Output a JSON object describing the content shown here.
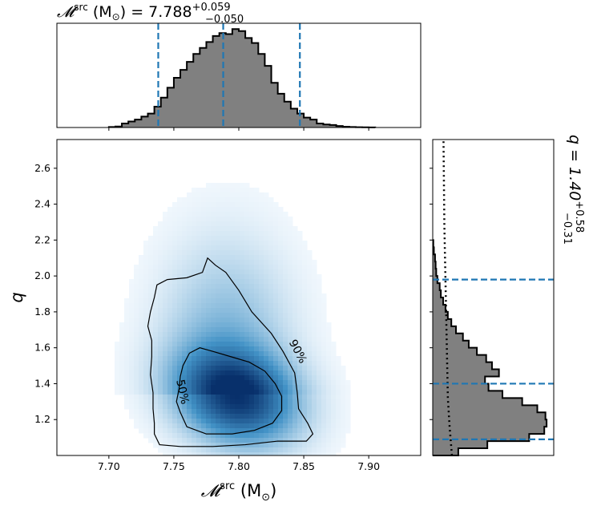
{
  "chart_data": {
    "type": "corner",
    "top_title": {
      "symbol": "𝓜",
      "sup": "src",
      "unit": " (M",
      "unit_sub": "⊙",
      "unit_close": ")",
      "eq": " = 7.788",
      "plus": "+0.059",
      "minus": "−0.050"
    },
    "right_title": {
      "text": "q = 1.40",
      "plus": "+0.58",
      "minus": "−0.31"
    },
    "xlabel": {
      "symbol": "𝓜",
      "sup": "src",
      "unit": " (M",
      "unit_sub": "⊙",
      "unit_close": ")"
    },
    "ylabel": "q",
    "xlim": [
      7.66,
      7.94
    ],
    "ylim": [
      1.0,
      2.76
    ],
    "xticks": [
      7.7,
      7.75,
      7.8,
      7.85,
      7.9
    ],
    "xtick_labels": [
      "7.70",
      "7.75",
      "7.80",
      "7.85",
      "7.90"
    ],
    "yticks": [
      1.2,
      1.4,
      1.6,
      1.8,
      2.0,
      2.2,
      2.4,
      2.6
    ],
    "ytick_labels": [
      "1.2",
      "1.4",
      "1.6",
      "1.8",
      "2.0",
      "2.2",
      "2.4",
      "2.6"
    ],
    "mc_hist": {
      "bins_start": 7.7,
      "bin_width": 0.005,
      "heights": [
        0.005,
        0.01,
        0.04,
        0.06,
        0.08,
        0.11,
        0.14,
        0.21,
        0.3,
        0.4,
        0.5,
        0.58,
        0.66,
        0.74,
        0.8,
        0.86,
        0.92,
        0.95,
        0.94,
        0.99,
        0.97,
        0.9,
        0.85,
        0.74,
        0.62,
        0.45,
        0.34,
        0.26,
        0.19,
        0.14,
        0.1,
        0.08,
        0.04,
        0.03,
        0.025,
        0.015,
        0.008,
        0.005,
        0.003,
        0.002,
        0.001
      ],
      "quantiles": [
        7.738,
        7.788,
        7.847
      ]
    },
    "q_hist": {
      "bins_start": 1.0,
      "bin_width": 0.04,
      "widths": [
        0.22,
        0.47,
        0.83,
        0.96,
        0.98,
        0.97,
        0.9,
        0.77,
        0.6,
        0.48,
        0.45,
        0.57,
        0.51,
        0.46,
        0.38,
        0.31,
        0.26,
        0.2,
        0.16,
        0.13,
        0.11,
        0.09,
        0.07,
        0.06,
        0.04,
        0.03,
        0.025,
        0.02,
        0.01,
        0.005
      ],
      "prior_x": [
        0.22,
        0.18,
        0.15,
        0.14,
        0.13,
        0.12,
        0.11,
        0.1,
        0.09,
        0.085,
        0.08,
        0.075
      ],
      "quantiles": [
        1.09,
        1.4,
        1.98
      ]
    },
    "density_center": [
      7.798,
      1.33
    ],
    "contours": [
      {
        "label": "50%",
        "level": 0.5
      },
      {
        "label": "90%",
        "level": 0.9
      }
    ],
    "colors": {
      "hist_fill": "#808080",
      "quantile_line": "#1f77b4",
      "cmap_dark": "#08306b",
      "cmap_light": "#f7fbff"
    }
  }
}
